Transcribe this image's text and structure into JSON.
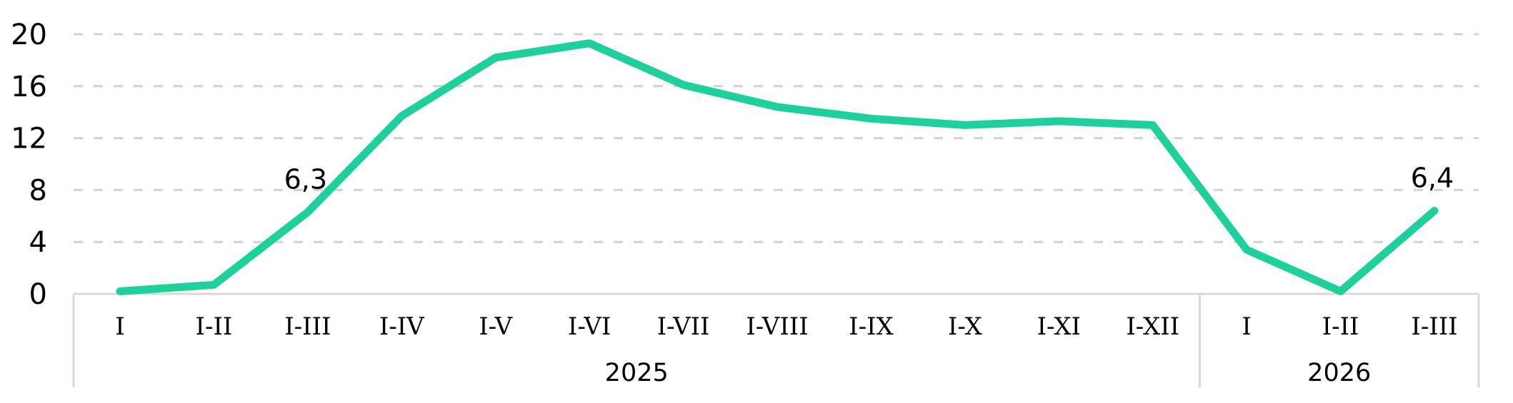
{
  "chart_data": {
    "type": "line",
    "categories": [
      "I",
      "I-II",
      "I-III",
      "I-IV",
      "I-V",
      "I-VI",
      "I-VII",
      "I-VIII",
      "I-IX",
      "I-X",
      "I-XI",
      "I-XII",
      "I",
      "I-II",
      "I-III"
    ],
    "category_groups": [
      {
        "label": "2025",
        "span": 12
      },
      {
        "label": "2026",
        "span": 3
      }
    ],
    "series": [
      {
        "name": "line-series",
        "color": "#20d09c",
        "values": [
          0.2,
          0.7,
          6.3,
          13.7,
          18.2,
          19.3,
          16.1,
          14.4,
          13.5,
          13.0,
          13.3,
          13.0,
          3.4,
          0.2,
          6.4
        ]
      }
    ],
    "point_labels": [
      {
        "index": 2,
        "text": "6,3"
      },
      {
        "index": 14,
        "text": "6,4"
      }
    ],
    "y_ticks": [
      0,
      4,
      8,
      12,
      16,
      20
    ],
    "ylim": [
      0,
      20
    ],
    "grid": "horizontal-dashed",
    "legend": "none"
  },
  "colors": {
    "line": "#20d09c",
    "gridline": "#d2d2d2",
    "frame": "#d9d9d9",
    "text": "#000000",
    "background": "#ffffff"
  }
}
